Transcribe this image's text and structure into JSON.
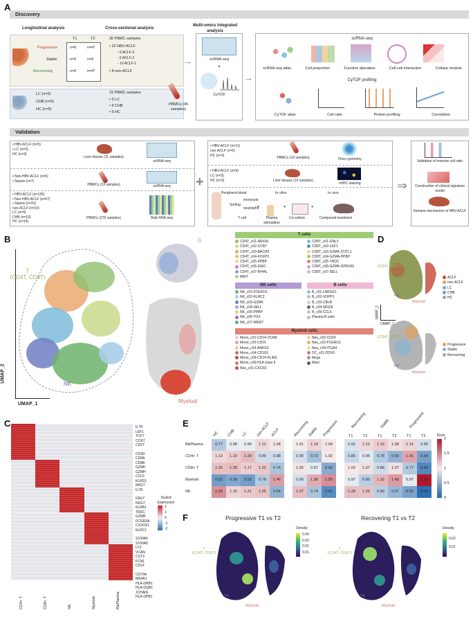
{
  "panels": {
    "a": "A",
    "b": "B",
    "c": "C",
    "d": "D",
    "e": "E",
    "f": "F"
  },
  "discovery": {
    "header": "Discovery",
    "longitudinal": "Longitudinal analysis",
    "cross": "Cross-sectional analysis",
    "multiomics": "Multi-omics integrated analysis",
    "t1": "T1",
    "t2": "T2",
    "progressive": "Progressive",
    "stable": "Stable",
    "recovering": "Recovering",
    "prog_t1": "n=6",
    "prog_t2": "n=4*",
    "stab_t1": "n=5",
    "stab_t2": "n=5",
    "rec_t1": "n=6",
    "rec_t2": "n=4*",
    "pbmc30": "30 PBMC samples",
    "hbv22": "• 22 HBV-ACLF",
    "aclf3": "- 6 ACLF-3",
    "aclf2": "- 6 ACLF-2",
    "aclf1": "- 10 ACLF-1",
    "nonaclf8": "• 8 non-ACLF",
    "lc": "LC (n=5)",
    "chb": "CHB (n=5)",
    "hc": "HC (n=5)",
    "pbmc15": "15 PBMC samples",
    "lc5": "• 5 LC",
    "chb5": "• 5 CHB",
    "hc5": "• 5 HC",
    "pbmcs45": "PBMCs (45 samples)",
    "scrna": "scRNA-seq",
    "cytof": "CyTOF",
    "scrna_hdr": "scRNA-seq",
    "cytof_hdr": "CyTOF profiling",
    "scrna_items": [
      "scRNA-seq atlas",
      "Cell proportion",
      "Function alteration",
      "Cell-cell interaction",
      "Cellular module"
    ],
    "cytof_items": [
      "CyTOF atlas",
      "Cell ratio",
      "Protein profiling",
      "Correlation"
    ]
  },
  "validation": {
    "header": "Validation",
    "r1": [
      "• HBV-ACLF (n=5)",
      "• LC (n=3)",
      "HC (n=3)"
    ],
    "r1_tissue": "Liver tissues (11 samples)",
    "r1_method": "scRNA-seq",
    "r2": [
      "• Non-HBV-ACLF (n=6)",
      "• Sepsis (n=7)"
    ],
    "r2_tissue": "PBMCs (13 samples)",
    "r2_method": "scRNA-seq",
    "r3": [
      "• HBV-ACLF (n=135)",
      "• Non-HBV-ACLF (n=67)",
      "• Sepsis (n=31)",
      "non-ACLF (n=10)",
      "LC (n=9)",
      "CHB (n=10)",
      "HC (n=14)"
    ],
    "r3_tissue": "PBMCs (276 samples)",
    "r3_method": "Bulk RNA-seq",
    "m1": [
      "• HBV-ACLF (n=11)",
      "non-ACLF (n=5)",
      "HC (n=3)"
    ],
    "m1_tissue": "PBMCs (19 samples)",
    "m1_method": "Flow cytometry",
    "m2": [
      "• HBV-ACLF (n=9)",
      "LC (n=3)",
      "HC (n=3)"
    ],
    "m2_tissue": "Liver tissues (15 samples)",
    "m2_method": "mIHC staining",
    "m3": {
      "pb": "Peripheral blood",
      "monocyte": "monocyte",
      "neutrophil": "neutrophil",
      "tcell": "T cell",
      "sorting": "Sorting",
      "invitro": "In vitro",
      "invivo": "In vivo",
      "plasma": "Plasma stimulation",
      "coculture": "Co-culture",
      "compound": "Compound treatment"
    },
    "out": [
      "Validation of immune cell ratio",
      "Construction of clinical signature model",
      "Immune mechanism of HBV-ACLF"
    ]
  },
  "umap": {
    "xlabel": "UMAP_1",
    "ylabel": "UMAP_2",
    "t": "T",
    "tsub": "(CD4T, CD8T)",
    "nk": "NK",
    "myeloid": "Myeloid",
    "bcell": "B"
  },
  "legend": {
    "tcells_hdr": "T cells",
    "tcells_col1": [
      {
        "n": "CD4T_c01-ANXA1",
        "c": "#8fbf6f"
      },
      {
        "n": "CD4T_c02-CCR7",
        "c": "#c9d98b"
      },
      {
        "n": "CD4T_c03-BACH2",
        "c": "#e8a467"
      },
      {
        "n": "CD4T_c04-FOXP3",
        "c": "#e5c46b"
      },
      {
        "n": "CD4T_c05-PPBP",
        "c": "#f3d5a1"
      },
      {
        "n": "CD4T_c06-IGKC",
        "c": "#c987c6"
      },
      {
        "n": "CD4T_c07-IFI44L",
        "c": "#8fa0d8"
      },
      {
        "n": "MAIT",
        "c": "#9fd19d"
      }
    ],
    "tcells_col2": [
      {
        "n": "CD8T_c01-GNLY",
        "c": "#7fbbd9"
      },
      {
        "n": "CD8T_c02-LEF1",
        "c": "#5c8fc9"
      },
      {
        "n": "CD8T_c03-GZMK-COTL1",
        "c": "#f2ce8e"
      },
      {
        "n": "CD8T_c04-GZMA-PPBP",
        "c": "#b4c965"
      },
      {
        "n": "CD8T_c05-TRDC",
        "c": "#d97f7f"
      },
      {
        "n": "CD8T_c06-GZMK-GPR183",
        "c": "#c8a7d8"
      },
      {
        "n": "CD8T_c07-SELL",
        "c": "#e8b0c6"
      }
    ],
    "nk_hdr": "NK cells",
    "nk": [
      {
        "n": "NK_c01-FCER1G",
        "c": "#6db36b"
      },
      {
        "n": "NK_c02-KLRC2",
        "c": "#a8cde8"
      },
      {
        "n": "NK_c03-GZMK",
        "c": "#6f7fc2"
      },
      {
        "n": "NK_c04-SELL",
        "c": "#b7a0d4"
      },
      {
        "n": "NK_c05-PPBP",
        "c": "#e6d07a"
      },
      {
        "n": "NK_c06-TOX",
        "c": "#a46bb4"
      },
      {
        "n": "NK_c07-MKI67",
        "c": "#5aa7a4"
      }
    ],
    "b_hdr": "B cells",
    "b": [
      {
        "n": "B_c01-LARGE1",
        "c": "#9fb5d9"
      },
      {
        "n": "B_c02-VOPP1",
        "c": "#b7bfd0"
      },
      {
        "n": "B_c03-CBLB",
        "c": "#cfd2dc"
      },
      {
        "n": "B_c04-SRGN",
        "c": "#6b5a8e"
      },
      {
        "n": "B_c05-CCL5",
        "c": "#a7d3ae"
      },
      {
        "n": "Plasma B cells",
        "c": "#d8b0d0"
      }
    ],
    "my_hdr": "Myeloid cells",
    "my_col1": [
      {
        "n": "Mono_c01-CD14-VCAN",
        "c": "#d9d9d9"
      },
      {
        "n": "Mono_c02-CD16",
        "c": "#e3a3a3"
      },
      {
        "n": "Mono_c03-ANKS3",
        "c": "#f0c7b0"
      },
      {
        "n": "Mono_c04-CD163",
        "c": "#c47a5a"
      },
      {
        "n": "Mono_c05-CD14-PLIN2",
        "c": "#b0573e"
      },
      {
        "n": "Mono_c06-HLA class II",
        "c": "#c97b86"
      },
      {
        "n": "Neu_c01-CXCR2",
        "c": "#d94b3b"
      }
    ],
    "my_col2": [
      {
        "n": "Neu_c02-CD24",
        "c": "#e8d2b6"
      },
      {
        "n": "Neu_c03-FCER1G",
        "c": "#f0b45a"
      },
      {
        "n": "Neu_c04-ITGA4",
        "c": "#e6e08a"
      },
      {
        "n": "DC_c01-DDX3",
        "c": "#a87fb8"
      },
      {
        "n": "Megs",
        "c": "#9a9a9a"
      },
      {
        "n": "Mast",
        "c": "#5a5a5a"
      }
    ]
  },
  "panelD": {
    "group_legend": [
      "ACLF",
      "non-ACLF",
      "LC",
      "CHB",
      "HC"
    ],
    "group_colors": [
      "#c64636",
      "#d9a35a",
      "#7aa9cf",
      "#8c8fb4",
      "#a4a4a4"
    ],
    "time_legend": [
      "Progressive",
      "Stable",
      "Recovering"
    ],
    "time_colors": [
      "#e49e4e",
      "#7eb6d5",
      "#a6a6a6"
    ],
    "t": "T",
    "tsub": "(CD4T, CD8T)",
    "nk": "NK",
    "myeloid": "Myeloid",
    "xlabel": "UMAP_1",
    "ylabel": "UMAP_2"
  },
  "panelC": {
    "columns": [
      "CD4+ T",
      "CD8+ T",
      "NK",
      "Myeloid",
      "B&Plasma"
    ],
    "genes1": [
      "IL7R",
      "LEF1",
      "TCF7",
      "CCR7",
      "CD27"
    ],
    "genes2": [
      "CD3D",
      "CD8A",
      "CD8B",
      "GZMK",
      "GZMH",
      "CCL5",
      "KLRD1",
      "NKG7",
      "IL7R"
    ],
    "genes3": [
      "GNLY",
      "NKG7",
      "KLRB1",
      "TRDC",
      "GZMB",
      "FCGR3A",
      "CX3CR1",
      "KLRC1"
    ],
    "genes4": [
      "S100A9",
      "S100A8",
      "LYZ",
      "VCAN",
      "CST3",
      "FCN1",
      "CD14"
    ],
    "genes5": [
      "CD79A",
      "MS4A1",
      "HLA-DRB1",
      "HLA-DQB1",
      "JCHAIN",
      "HLA-DPB1"
    ],
    "legend_title": "Scaled Expression",
    "ticks": [
      "2",
      "1",
      "0",
      "-1",
      "-2"
    ]
  },
  "panelE": {
    "rows": [
      "B&Plasma",
      "CD4+ T",
      "CD8+ T",
      "Myeloid",
      "NK"
    ],
    "g1_cols": [
      "HC",
      "CHB",
      "LC",
      "non-ACLF",
      "ACLF"
    ],
    "g1": [
      [
        "0.77",
        "0.98",
        "0.99",
        "1.12",
        "1.04"
      ],
      [
        "1.13",
        "1.19",
        "1.29",
        "0.89",
        "0.88"
      ],
      [
        "1.26",
        "1.28",
        "1.17",
        "1.22",
        "0.74"
      ],
      [
        "0.52",
        "0.58",
        "0.53",
        "0.78",
        "1.46"
      ],
      [
        "1.55",
        "1.15",
        "1.21",
        "1.25",
        "0.64"
      ]
    ],
    "g2_cols": [
      "Recovering",
      "Stable",
      "Progressive"
    ],
    "g2": [
      [
        "1.01",
        "1.14",
        "1.04"
      ],
      [
        "0.90",
        "0.72",
        "1.02"
      ],
      [
        "1.05",
        "0.97",
        "0.60"
      ],
      [
        "0.90",
        "1.38",
        "1.55"
      ],
      [
        "1.27",
        "0.74",
        "0.42"
      ]
    ],
    "g3_hdr": [
      "Recovering",
      "Stable",
      "Progressive"
    ],
    "g3_cols": [
      "T1",
      "T2",
      "T1",
      "T2",
      "T1",
      "T2"
    ],
    "g3": [
      [
        "0.92",
        "1.12",
        "1.19",
        "1.08",
        "1.14",
        "0.90"
      ],
      [
        "0.85",
        "0.95",
        "0.78",
        "0.65",
        "1.42",
        "0.54"
      ],
      [
        "1.03",
        "1.07",
        "0.88",
        "1.07",
        "0.77",
        "0.40"
      ],
      [
        "0.97",
        "0.80",
        "1.32",
        "1.48",
        "0.97",
        "2.25"
      ],
      [
        "1.28",
        "1.25",
        "0.80",
        "0.67",
        "0.55",
        "0.25"
      ]
    ],
    "legend_title": "Ro/e",
    "ticks": [
      "2",
      "1.5",
      "1",
      "0.5",
      "0"
    ]
  },
  "panelF": {
    "title1": "Progressive T1 vs T2",
    "title2": "Recovering T1 vs T2",
    "legend_title": "Density",
    "ticks1": [
      "0.04",
      "0.03",
      "0.02",
      "0.01"
    ],
    "ticks2": [
      "0.02",
      "0.01"
    ],
    "t": "T",
    "tsub": "(CD4T, CD8T)",
    "nk": "NK",
    "myeloid": "Myeloid"
  }
}
